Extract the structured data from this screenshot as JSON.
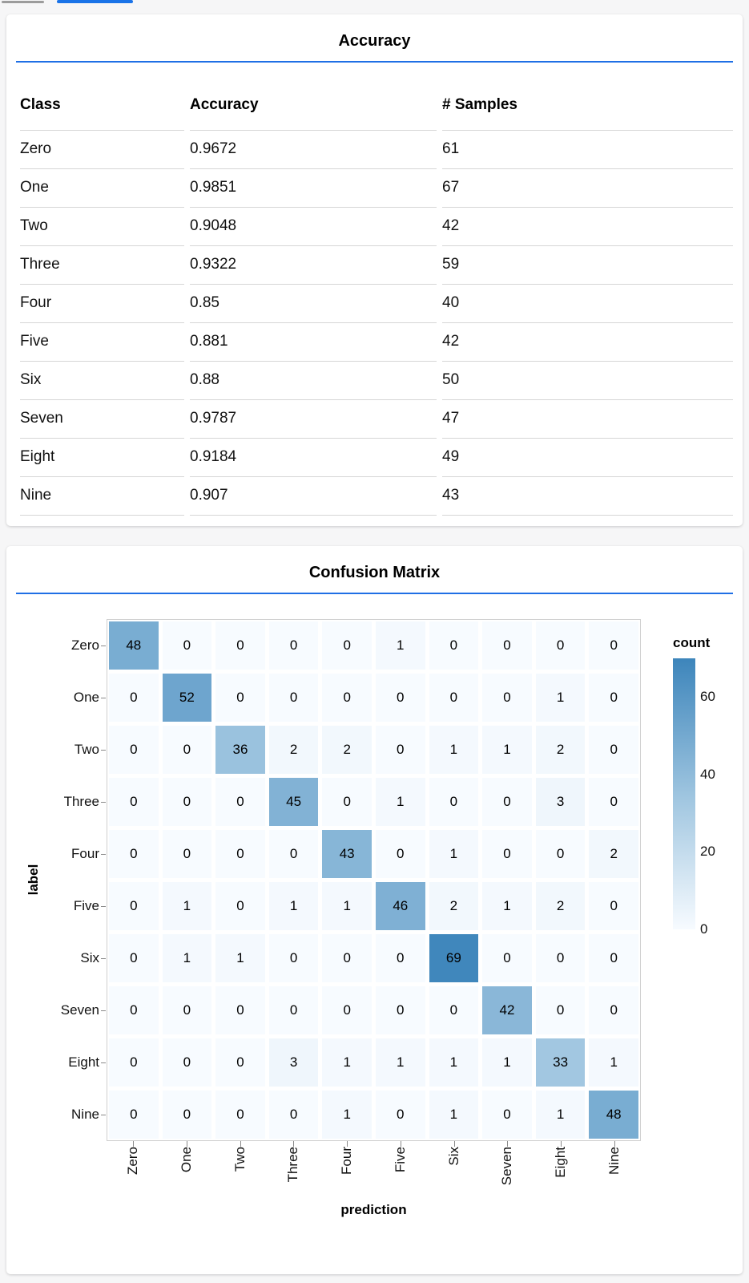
{
  "page": {
    "background": "#f6f6f7",
    "accent_blue": "#1f6fe5",
    "tab_indicator_gray": "#9c9c9c",
    "tab_indicator_blue": "#1a73e8"
  },
  "chart_data": [
    {
      "type": "table",
      "title": "Accuracy",
      "columns": [
        "Class",
        "Accuracy",
        "# Samples"
      ],
      "rows": [
        [
          "Zero",
          "0.9672",
          "61"
        ],
        [
          "One",
          "0.9851",
          "67"
        ],
        [
          "Two",
          "0.9048",
          "42"
        ],
        [
          "Three",
          "0.9322",
          "59"
        ],
        [
          "Four",
          "0.85",
          "40"
        ],
        [
          "Five",
          "0.881",
          "42"
        ],
        [
          "Six",
          "0.88",
          "50"
        ],
        [
          "Seven",
          "0.9787",
          "47"
        ],
        [
          "Eight",
          "0.9184",
          "49"
        ],
        [
          "Nine",
          "0.907",
          "43"
        ]
      ]
    },
    {
      "type": "heatmap",
      "title": "Confusion Matrix",
      "xlabel": "prediction",
      "ylabel": "label",
      "x_categories": [
        "Zero",
        "One",
        "Two",
        "Three",
        "Four",
        "Five",
        "Six",
        "Seven",
        "Eight",
        "Nine"
      ],
      "y_categories": [
        "Zero",
        "One",
        "Two",
        "Three",
        "Four",
        "Five",
        "Six",
        "Seven",
        "Eight",
        "Nine"
      ],
      "matrix": [
        [
          48,
          0,
          0,
          0,
          0,
          1,
          0,
          0,
          0,
          0
        ],
        [
          0,
          52,
          0,
          0,
          0,
          0,
          0,
          0,
          1,
          0
        ],
        [
          0,
          0,
          36,
          2,
          2,
          0,
          1,
          1,
          2,
          0
        ],
        [
          0,
          0,
          0,
          45,
          0,
          1,
          0,
          0,
          3,
          0
        ],
        [
          0,
          0,
          0,
          0,
          43,
          0,
          1,
          0,
          0,
          2
        ],
        [
          0,
          1,
          0,
          1,
          1,
          46,
          2,
          1,
          2,
          0
        ],
        [
          0,
          1,
          1,
          0,
          0,
          0,
          69,
          0,
          0,
          0
        ],
        [
          0,
          0,
          0,
          0,
          0,
          0,
          0,
          42,
          0,
          0
        ],
        [
          0,
          0,
          0,
          3,
          1,
          1,
          1,
          1,
          33,
          1
        ],
        [
          0,
          0,
          0,
          0,
          1,
          0,
          1,
          0,
          1,
          48
        ]
      ],
      "legend_title": "count",
      "legend_ticks": [
        60,
        40,
        20,
        0
      ],
      "color_domain": [
        0,
        70
      ],
      "colormap_stops": [
        [
          0,
          "#f7fbff"
        ],
        [
          35,
          "#9dc4df"
        ],
        [
          70,
          "#3d85bb"
        ]
      ],
      "grid": true,
      "legend_position": "right"
    }
  ]
}
